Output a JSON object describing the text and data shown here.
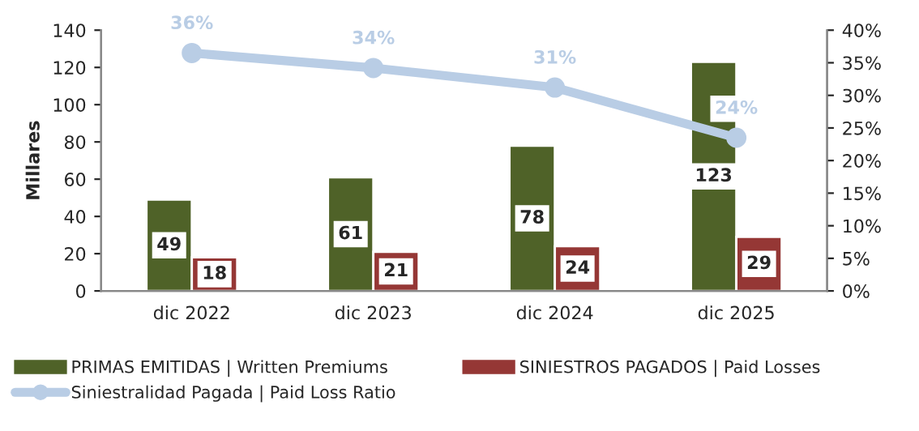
{
  "chart_data": {
    "type": "bar",
    "ylabel": "Millares",
    "categories": [
      "dic 2022",
      "dic 2023",
      "dic 2024",
      "dic 2025"
    ],
    "series": [
      {
        "name": "PRIMAS EMITIDAS | Written Premiums",
        "color": "#4f6228",
        "values": [
          49,
          61,
          78,
          123
        ],
        "value_labels": [
          "49",
          "61",
          "78",
          "123"
        ]
      },
      {
        "name": "SINIESTROS PAGADOS | Paid Losses",
        "color": "#953735",
        "values": [
          18,
          21,
          24,
          29
        ],
        "value_labels": [
          "18",
          "21",
          "24",
          "29"
        ]
      },
      {
        "name": "Siniestralidad Pagada | Paid Loss Ratio",
        "type": "line",
        "axis": "y2",
        "color": "#b9cde5",
        "marker": "circle",
        "values": [
          36.5,
          34.2,
          31.2,
          23.5
        ],
        "value_labels": [
          "36%",
          "34%",
          "31%",
          "24%"
        ]
      }
    ],
    "ylim": [
      0,
      140
    ],
    "yticks": [
      0,
      20,
      40,
      60,
      80,
      100,
      120,
      140
    ],
    "y2lim": [
      0,
      40
    ],
    "y2ticks": [
      {
        "value": 0,
        "label": "0%"
      },
      {
        "value": 5,
        "label": "5%"
      },
      {
        "value": 10,
        "label": "10%"
      },
      {
        "value": 15,
        "label": "15%"
      },
      {
        "value": 20,
        "label": "20%"
      },
      {
        "value": 25,
        "label": "25%"
      },
      {
        "value": 30,
        "label": "30%"
      },
      {
        "value": 35,
        "label": "35%"
      },
      {
        "value": 40,
        "label": "40%"
      }
    ],
    "legend": "bottom",
    "grid": false
  }
}
